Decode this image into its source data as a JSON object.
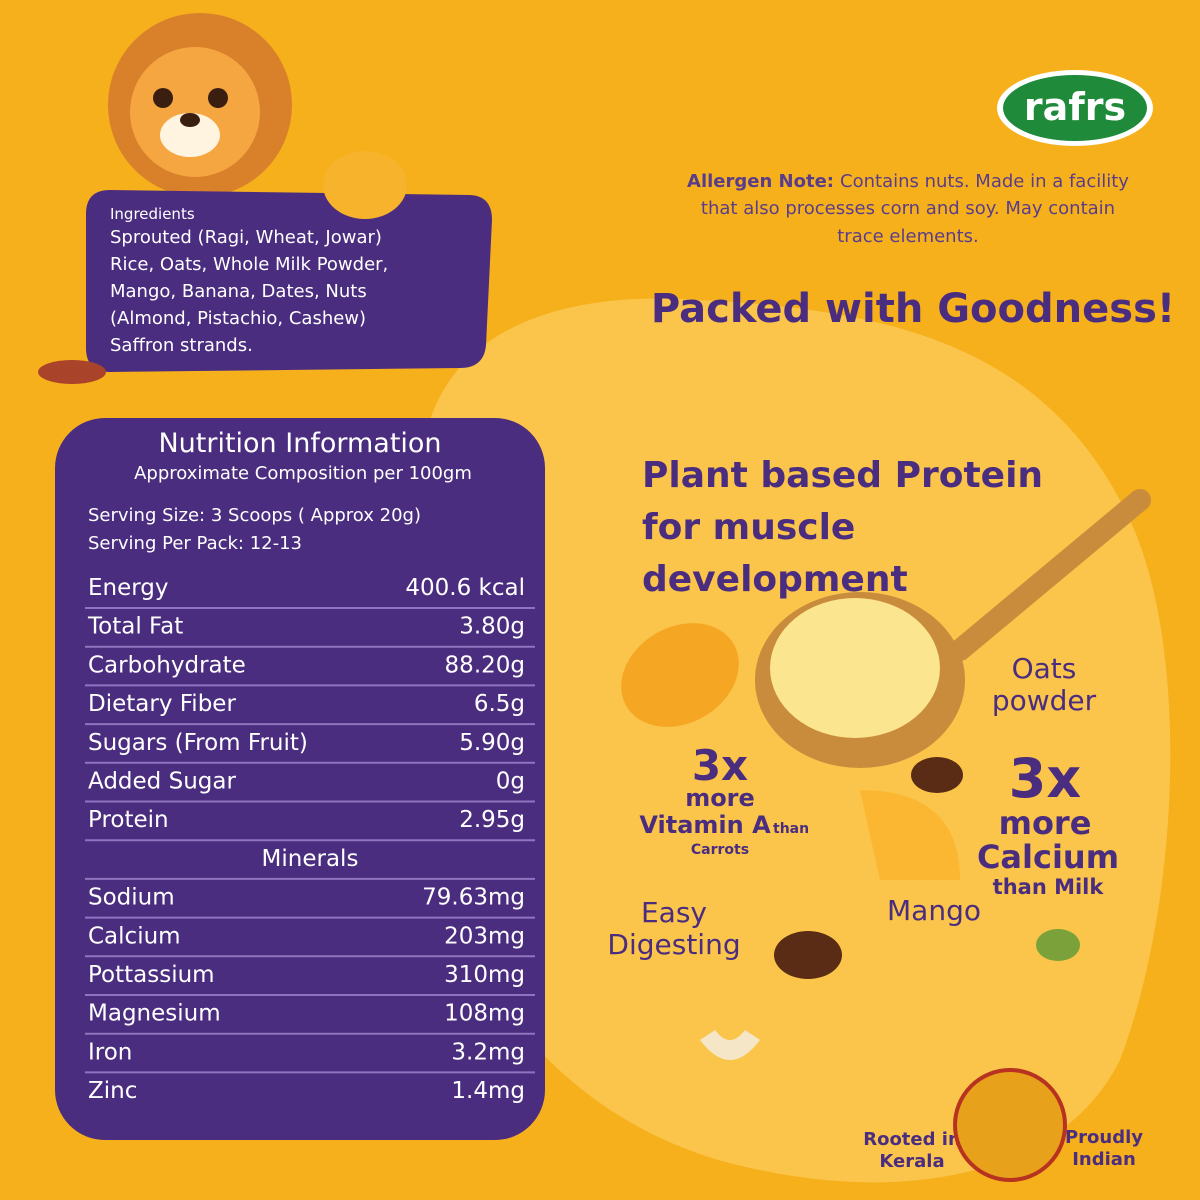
{
  "brand": "rafrs",
  "ingredients": {
    "title": "Ingredients",
    "lines": [
      "Sprouted (Ragi, Wheat, Jowar)",
      "Rice, Oats, Whole Milk Powder,",
      "Mango, Banana, Dates, Nuts",
      "(Almond, Pistachio, Cashew)",
      "Saffron strands."
    ]
  },
  "allergen": {
    "label": "Allergen Note:",
    "lines": [
      "Contains nuts. Made in a facility",
      "that also processes corn and soy. May contain",
      "trace elements."
    ]
  },
  "headline": "Packed with Goodness!",
  "protein": [
    "Plant based Protein",
    "for muscle",
    "development"
  ],
  "nutrition": {
    "title": "Nutrition Information",
    "subtitle": "Approximate Composition per 100gm",
    "serving": [
      "Serving Size: 3 Scoops ( Approx 20g)",
      "Serving Per Pack: 12-13"
    ],
    "rows": [
      [
        "Energy",
        "400.6 kcal"
      ],
      [
        "Total Fat",
        "3.80g"
      ],
      [
        "Carbohydrate",
        "88.20g"
      ],
      [
        "Dietary Fiber",
        "6.5g"
      ],
      [
        "Sugars (From Fruit)",
        "5.90g"
      ],
      [
        "Added Sugar",
        "0g"
      ],
      [
        "Protein",
        "2.95g"
      ]
    ],
    "minerals_title": "Minerals",
    "minerals": [
      [
        "Sodium",
        "79.63mg"
      ],
      [
        "Calcium",
        "203mg"
      ],
      [
        "Pottassium",
        "310mg"
      ],
      [
        "Magnesium",
        "108mg"
      ],
      [
        "Iron",
        "3.2mg"
      ],
      [
        "Zinc",
        "1.4mg"
      ]
    ]
  },
  "vitamin": {
    "big": "3x",
    "more": "more",
    "name": "Vitamin A",
    "than": "than",
    "ref": "Carrots"
  },
  "calcium": {
    "big": "3x",
    "more": "more",
    "name": "Calcium",
    "ref": "than Milk"
  },
  "labels": {
    "oats": [
      "Oats",
      "powder"
    ],
    "digest": [
      "Easy",
      "Digesting"
    ],
    "mango": "Mango"
  },
  "badge": {
    "left": [
      "Rooted in",
      "Kerala"
    ],
    "right": [
      "Proudly",
      "Indian"
    ]
  }
}
